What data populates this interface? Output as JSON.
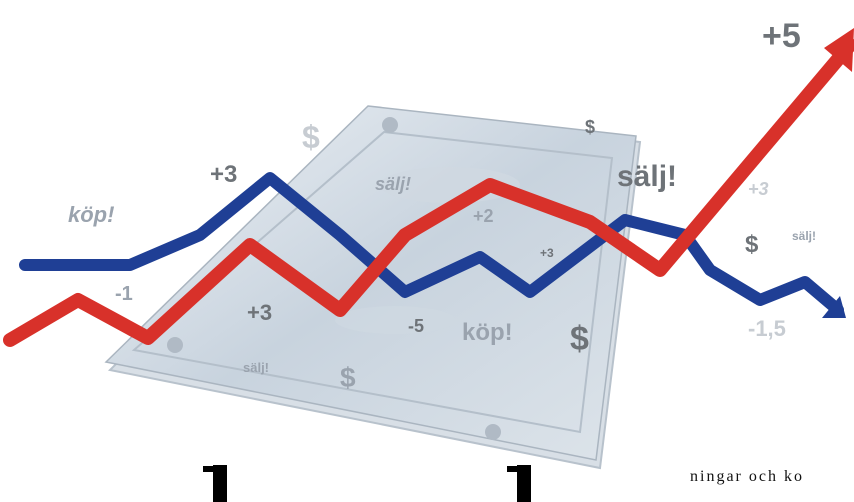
{
  "illustration": {
    "labels": {
      "top_gain": "+5",
      "buy_left": "köp!",
      "plus3_top": "+3",
      "minus1": "-1",
      "dollar_top": "$",
      "dollar_small_top": "$",
      "sell_center": "sälj!",
      "sell_right": "sälj!",
      "plus2": "+2",
      "plus3_small": "+3",
      "plus3_right": "+3",
      "dollar_right": "$",
      "sell_small_right": "sälj!",
      "plus3_mid": "+3",
      "minus5": "-5",
      "buy_mid": "köp!",
      "dollar_bottom_big": "$",
      "minus15": "-1,5",
      "sell_bottom": "sälj!",
      "dollar_bottom": "$"
    },
    "colors": {
      "red_line": "#d8312a",
      "blue_line": "#1f3f95",
      "label_gray": "#9aa3ae",
      "dark_gray": "#6e7378",
      "light_gray": "#c7ccd2"
    }
  },
  "text": {
    "fragment": "ningar och ko"
  }
}
